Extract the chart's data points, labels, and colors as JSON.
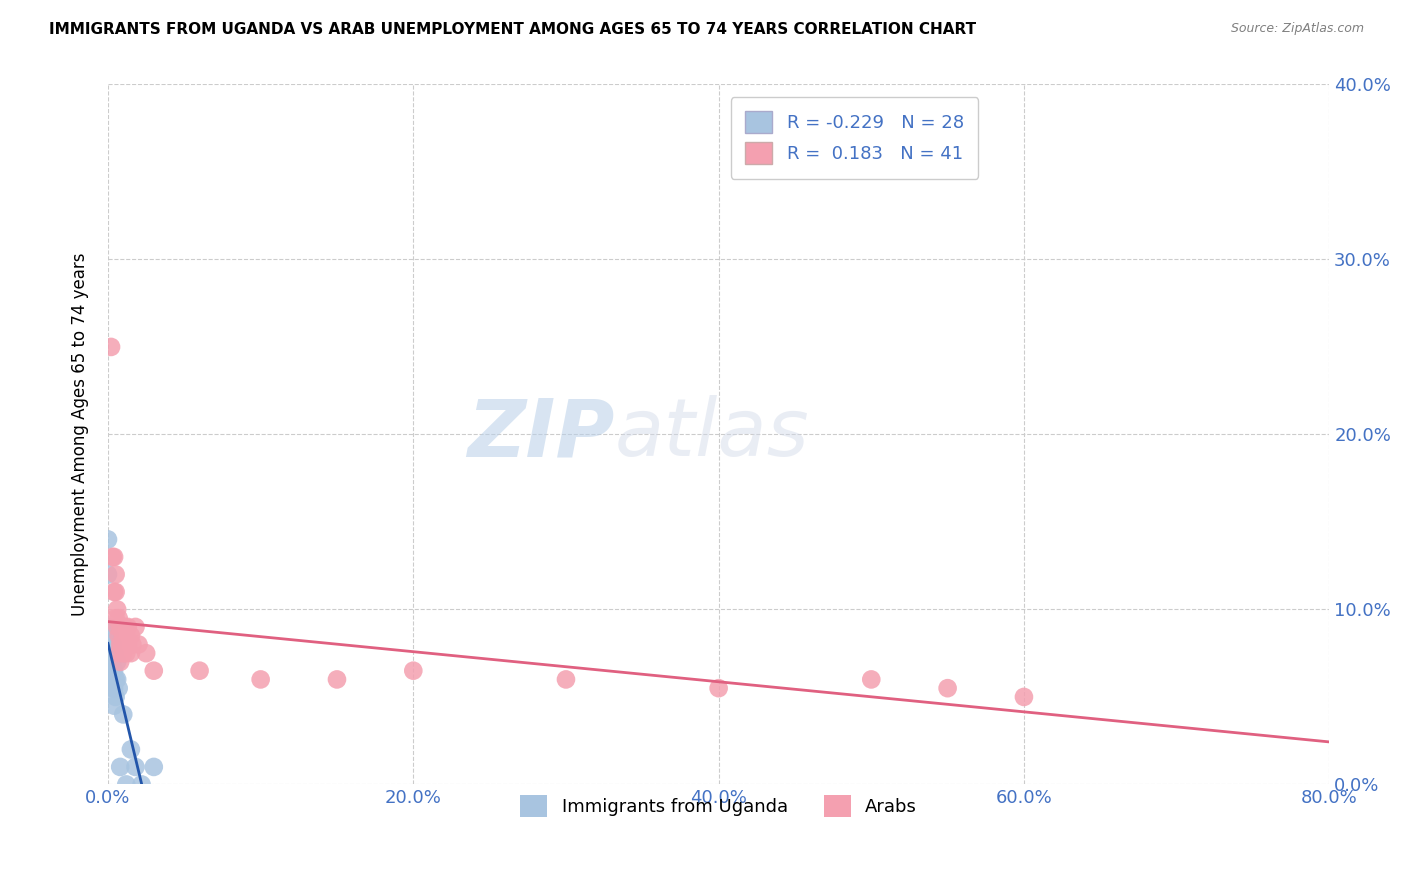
{
  "title": "IMMIGRANTS FROM UGANDA VS ARAB UNEMPLOYMENT AMONG AGES 65 TO 74 YEARS CORRELATION CHART",
  "source": "Source: ZipAtlas.com",
  "xlabel_ticks": [
    "0.0%",
    "20.0%",
    "40.0%",
    "60.0%",
    "80.0%"
  ],
  "ylabel_left_ticks": [
    "",
    "",
    "",
    "",
    ""
  ],
  "ylabel_right_ticks": [
    "0.0%",
    "10.0%",
    "20.0%",
    "30.0%",
    "40.0%"
  ],
  "ylabel_label": "Unemployment Among Ages 65 to 74 years",
  "xlim": [
    0.0,
    0.8
  ],
  "ylim": [
    0.0,
    0.4
  ],
  "legend_R_uganda": "-0.229",
  "legend_N_uganda": "28",
  "legend_R_arab": " 0.183",
  "legend_N_arab": "41",
  "uganda_color": "#a8c4e0",
  "arab_color": "#f4a0b0",
  "uganda_line_color": "#2255aa",
  "arab_line_color": "#e06080",
  "watermark_zip": "ZIP",
  "watermark_atlas": "atlas",
  "uganda_x": [
    0.0,
    0.0,
    0.0,
    0.001,
    0.001,
    0.002,
    0.002,
    0.002,
    0.003,
    0.003,
    0.003,
    0.003,
    0.004,
    0.004,
    0.004,
    0.004,
    0.005,
    0.005,
    0.006,
    0.006,
    0.007,
    0.008,
    0.01,
    0.012,
    0.015,
    0.018,
    0.022,
    0.03
  ],
  "uganda_y": [
    0.14,
    0.12,
    0.09,
    0.085,
    0.075,
    0.07,
    0.065,
    0.06,
    0.08,
    0.07,
    0.065,
    0.055,
    0.075,
    0.065,
    0.055,
    0.045,
    0.06,
    0.05,
    0.07,
    0.06,
    0.055,
    0.01,
    0.04,
    0.0,
    0.02,
    0.01,
    0.0,
    0.01
  ],
  "arab_x": [
    0.002,
    0.003,
    0.004,
    0.004,
    0.005,
    0.005,
    0.005,
    0.006,
    0.006,
    0.007,
    0.007,
    0.007,
    0.008,
    0.008,
    0.008,
    0.009,
    0.009,
    0.01,
    0.01,
    0.011,
    0.011,
    0.012,
    0.012,
    0.013,
    0.013,
    0.015,
    0.015,
    0.016,
    0.018,
    0.02,
    0.025,
    0.03,
    0.06,
    0.1,
    0.15,
    0.2,
    0.3,
    0.4,
    0.5,
    0.55,
    0.6
  ],
  "arab_y": [
    0.25,
    0.13,
    0.13,
    0.11,
    0.12,
    0.11,
    0.095,
    0.1,
    0.09,
    0.095,
    0.085,
    0.075,
    0.09,
    0.08,
    0.07,
    0.09,
    0.08,
    0.085,
    0.075,
    0.09,
    0.08,
    0.085,
    0.075,
    0.09,
    0.08,
    0.085,
    0.075,
    0.08,
    0.09,
    0.08,
    0.075,
    0.065,
    0.065,
    0.06,
    0.06,
    0.065,
    0.06,
    0.055,
    0.06,
    0.055,
    0.05
  ]
}
